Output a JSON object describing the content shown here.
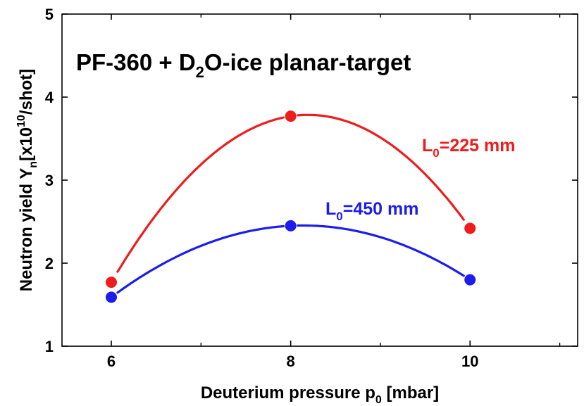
{
  "chart_data": {
    "type": "line",
    "title": {
      "main": "PF-360 + D",
      "sub": "2",
      "rest": "O-ice planar-target"
    },
    "xlabel": {
      "main": "Deuterium pressure p",
      "sub": "0",
      "rest": " [mbar]"
    },
    "ylabel": {
      "main": "Neutron yield Y",
      "sub": "n",
      "mid": "[x10",
      "sup": "10",
      "rest": "/shot]"
    },
    "xlim": [
      5.45,
      11.2
    ],
    "ylim": [
      1,
      5
    ],
    "x_ticks": [
      6,
      8,
      10
    ],
    "x_tick_labels": [
      "6",
      "8",
      "10"
    ],
    "x_minor_ticks": [
      7,
      9,
      11
    ],
    "y_ticks": [
      1,
      2,
      3,
      4,
      5
    ],
    "y_tick_labels": [
      "1",
      "2",
      "3",
      "4",
      "5"
    ],
    "grid": false,
    "series": [
      {
        "label": {
          "main": "L",
          "sub": "0",
          "rest": "=225 mm"
        },
        "color": "#ee1c1c",
        "x": [
          6,
          8,
          10
        ],
        "y": [
          1.77,
          3.77,
          2.42
        ]
      },
      {
        "label": {
          "main": "L",
          "sub": "0",
          "rest": "=450 mm"
        },
        "color": "#1c1cee",
        "x": [
          6,
          8,
          10
        ],
        "y": [
          1.59,
          2.45,
          1.8
        ]
      }
    ]
  }
}
